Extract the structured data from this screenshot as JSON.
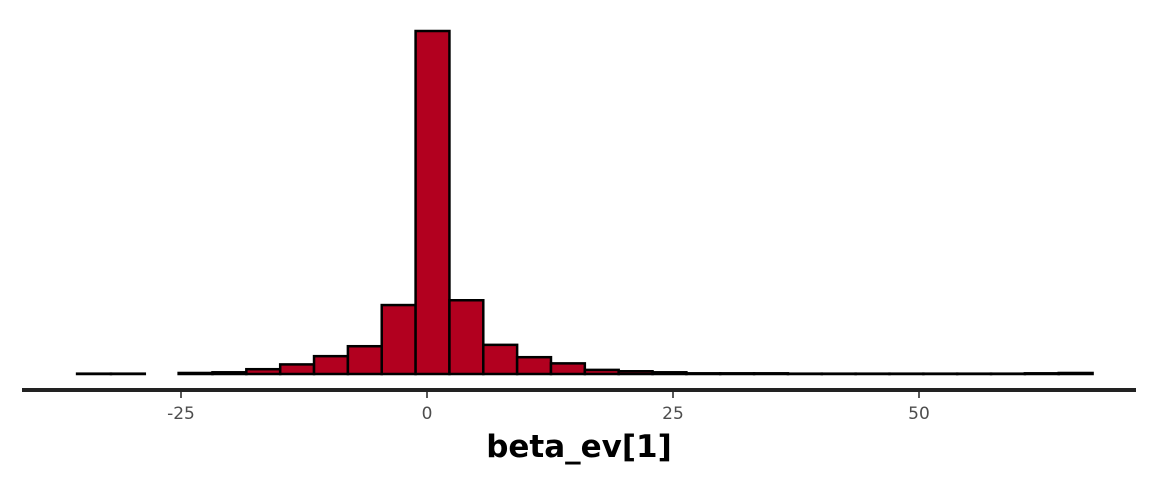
{
  "chart_data": {
    "type": "bar",
    "subtype": "histogram",
    "xlabel": "beta_ev[1]",
    "ylabel": "",
    "title": "",
    "xlim": [
      -36.5,
      67.5
    ],
    "x_ticks": [
      -25,
      0,
      25,
      50
    ],
    "x_tick_labels": [
      "-25",
      "0",
      "25",
      "50"
    ],
    "y_axis_visible": false,
    "grid": false,
    "bin_width": 3.44,
    "bins": [
      {
        "x0": -35.56,
        "x1": -32.12,
        "count": 1
      },
      {
        "x0": -32.12,
        "x1": -28.68,
        "count": 1
      },
      {
        "x0": -28.68,
        "x1": -25.24,
        "count": 0
      },
      {
        "x0": -25.24,
        "x1": -21.8,
        "count": 3
      },
      {
        "x0": -21.8,
        "x1": -18.36,
        "count": 5
      },
      {
        "x0": -18.36,
        "x1": -14.92,
        "count": 14
      },
      {
        "x0": -14.92,
        "x1": -11.48,
        "count": 28
      },
      {
        "x0": -11.48,
        "x1": -8.04,
        "count": 52
      },
      {
        "x0": -8.04,
        "x1": -4.6,
        "count": 81
      },
      {
        "x0": -4.6,
        "x1": -1.16,
        "count": 201
      },
      {
        "x0": -1.16,
        "x1": 2.28,
        "count": 1000
      },
      {
        "x0": 2.28,
        "x1": 5.72,
        "count": 215
      },
      {
        "x0": 5.72,
        "x1": 9.16,
        "count": 85
      },
      {
        "x0": 9.16,
        "x1": 12.6,
        "count": 49
      },
      {
        "x0": 12.6,
        "x1": 16.04,
        "count": 31
      },
      {
        "x0": 16.04,
        "x1": 19.48,
        "count": 12
      },
      {
        "x0": 19.48,
        "x1": 22.92,
        "count": 8
      },
      {
        "x0": 22.92,
        "x1": 26.36,
        "count": 5
      },
      {
        "x0": 26.36,
        "x1": 29.8,
        "count": 2
      },
      {
        "x0": 29.8,
        "x1": 33.24,
        "count": 2
      },
      {
        "x0": 33.24,
        "x1": 36.68,
        "count": 2
      },
      {
        "x0": 36.68,
        "x1": 40.12,
        "count": 1
      },
      {
        "x0": 40.12,
        "x1": 43.56,
        "count": 1
      },
      {
        "x0": 43.56,
        "x1": 47.0,
        "count": 1
      },
      {
        "x0": 47.0,
        "x1": 50.44,
        "count": 1
      },
      {
        "x0": 50.44,
        "x1": 53.88,
        "count": 1
      },
      {
        "x0": 53.88,
        "x1": 57.32,
        "count": 1
      },
      {
        "x0": 57.32,
        "x1": 60.76,
        "count": 1
      },
      {
        "x0": 60.76,
        "x1": 64.2,
        "count": 2
      },
      {
        "x0": 64.2,
        "x1": 67.64,
        "count": 3
      }
    ],
    "bar_fill": "#b2001f",
    "bar_stroke": "#000000",
    "axis_color": "#222222"
  }
}
